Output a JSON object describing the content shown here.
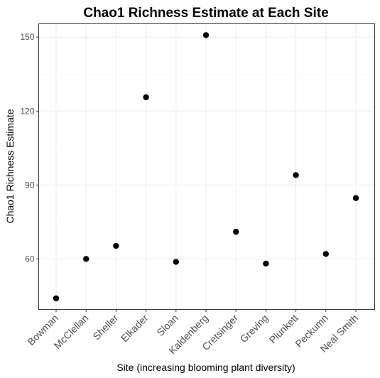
{
  "chart_data": {
    "type": "scatter",
    "title": "Chao1 Richness Estimate at Each Site",
    "xlabel": "Site (increasing blooming plant diversity)",
    "ylabel": "Chao1 Richness Estimate",
    "categories": [
      "Bowman",
      "McClellan",
      "Sheller",
      "Elkader",
      "Sloan",
      "Kaldenberg",
      "Cretsinger",
      "Greving",
      "Plunkett",
      "Peckumn",
      "Neal Smith"
    ],
    "values": [
      44,
      60,
      65.3,
      125.6,
      58.8,
      150.8,
      71,
      58.1,
      94,
      62,
      84.7
    ],
    "y_ticks": [
      60,
      90,
      120,
      150
    ],
    "ylim": [
      39.5,
      155.4
    ],
    "grid": true,
    "point_color": "#000000"
  }
}
